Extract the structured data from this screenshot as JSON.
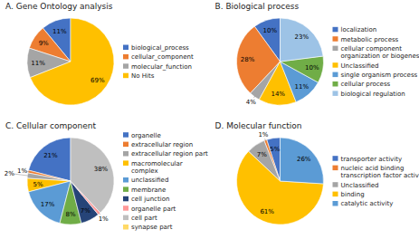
{
  "chart_data": [
    {
      "type": "pie",
      "title": "A. Gene Ontology analysis",
      "categories": [
        "biological_process",
        "cellular_component",
        "molecular_function",
        "No Hits"
      ],
      "values": [
        11,
        9,
        11,
        69
      ],
      "value_labels": [
        "11%",
        "9%",
        "11%",
        "69%"
      ],
      "colors": [
        "#4472C4",
        "#ED7D31",
        "#A5A5A5",
        "#FFC000"
      ],
      "data_labels": true,
      "legend": "right"
    },
    {
      "type": "pie",
      "title": "B. Biological process",
      "categories": [
        "localization",
        "metabolic process",
        "cellular component\norganization or biogenesis",
        "Unclassified",
        "single organism process",
        "cellular process",
        "biological regulation"
      ],
      "values": [
        10,
        28,
        4,
        14,
        11,
        10,
        23
      ],
      "value_labels": [
        "10%",
        "28%",
        "4%",
        "14%",
        "11%",
        "10%",
        "23%"
      ],
      "colors": [
        "#4472C4",
        "#ED7D31",
        "#A5A5A5",
        "#FFC000",
        "#5B9BD5",
        "#70AD47",
        "#9DC3E6"
      ],
      "data_labels": true,
      "legend": "right"
    },
    {
      "type": "pie",
      "title": "C. Cellular component",
      "categories": [
        "organelle",
        "extracellular region",
        "extracellular region part",
        "macromolecular\ncomplex",
        "unclassified",
        "membrane",
        "cell junction",
        "organelle part",
        "cell part",
        "synapse part"
      ],
      "values": [
        21,
        1,
        2,
        5,
        17,
        8,
        7,
        1,
        38,
        0
      ],
      "value_labels": [
        "21%",
        "1%",
        "2%",
        "5%",
        "17%",
        "8%",
        "7%",
        "1%",
        "38%",
        null
      ],
      "colors": [
        "#4472C4",
        "#ED7D31",
        "#A5A5A5",
        "#FFC000",
        "#5B9BD5",
        "#70AD47",
        "#264478",
        "#FF9999",
        "#BFBFBF",
        "#FFD966"
      ],
      "data_labels": true,
      "legend": "right"
    },
    {
      "type": "pie",
      "title": "D. Molecular function",
      "categories": [
        "transporter activity",
        "nucleic acid binding\ntranscription factor activity",
        "Unclassified",
        "binding",
        "catalytic activity"
      ],
      "values": [
        5,
        1,
        7,
        61,
        26
      ],
      "value_labels": [
        "5%",
        "1%",
        "7%",
        "61%",
        "26%"
      ],
      "colors": [
        "#4472C4",
        "#ED7D31",
        "#A5A5A5",
        "#FFC000",
        "#5B9BD5"
      ],
      "data_labels": true,
      "legend": "right"
    }
  ]
}
